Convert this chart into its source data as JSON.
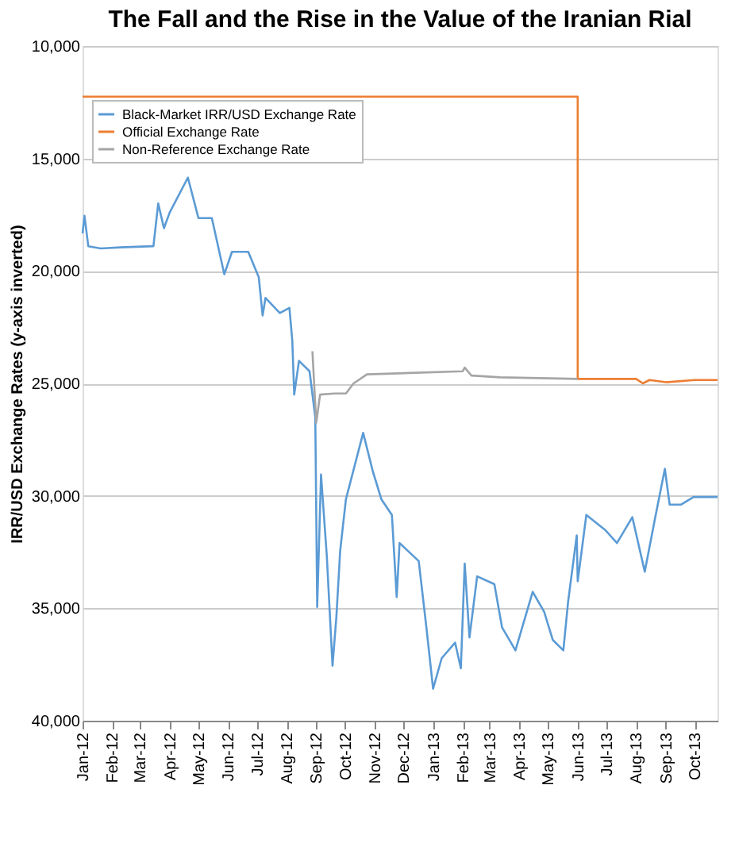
{
  "chart_data": {
    "type": "line",
    "title": "The Fall and the Rise in the Value of the Iranian Rial",
    "ylabel": "IRR/USD Exchange Rates (y-axis inverted)",
    "xlim": [
      "2012-01-01",
      "2013-10-25"
    ],
    "xticks": [
      {
        "value": "2012-01-01",
        "label": "Jan-12"
      },
      {
        "value": "2012-02-01",
        "label": "Feb-12"
      },
      {
        "value": "2012-03-01",
        "label": "Mar-12"
      },
      {
        "value": "2012-04-01",
        "label": "Apr-12"
      },
      {
        "value": "2012-05-01",
        "label": "May-12"
      },
      {
        "value": "2012-06-01",
        "label": "Jun-12"
      },
      {
        "value": "2012-07-01",
        "label": "Jul-12"
      },
      {
        "value": "2012-08-01",
        "label": "Aug-12"
      },
      {
        "value": "2012-09-01",
        "label": "Sep-12"
      },
      {
        "value": "2012-10-01",
        "label": "Oct-12"
      },
      {
        "value": "2012-11-01",
        "label": "Nov-12"
      },
      {
        "value": "2012-12-01",
        "label": "Dec-12"
      },
      {
        "value": "2013-01-01",
        "label": "Jan-13"
      },
      {
        "value": "2013-02-01",
        "label": "Feb-13"
      },
      {
        "value": "2013-03-01",
        "label": "Mar-13"
      },
      {
        "value": "2013-04-01",
        "label": "Apr-13"
      },
      {
        "value": "2013-05-01",
        "label": "May-13"
      },
      {
        "value": "2013-06-01",
        "label": "Jun-13"
      },
      {
        "value": "2013-07-01",
        "label": "Jul-13"
      },
      {
        "value": "2013-08-01",
        "label": "Aug-13"
      },
      {
        "value": "2013-09-01",
        "label": "Sep-13"
      },
      {
        "value": "2013-10-01",
        "label": "Oct-13"
      }
    ],
    "ylim": [
      40000,
      10000
    ],
    "yticks": [
      {
        "value": 10000,
        "label": "10,000"
      },
      {
        "value": 15000,
        "label": "15,000"
      },
      {
        "value": 20000,
        "label": "20,000"
      },
      {
        "value": 25000,
        "label": "25,000"
      },
      {
        "value": 30000,
        "label": "30,000"
      },
      {
        "value": 35000,
        "label": "35,000"
      },
      {
        "value": 40000,
        "label": "40,000"
      }
    ],
    "grid": "y",
    "legend": "top left",
    "line_style": "solid",
    "marker": "none",
    "series": [
      {
        "name": "Black-Market IRR/USD Exchange Rate",
        "color": "#5b9bd5",
        "x": [
          "2012-01-01",
          "2012-01-03",
          "2012-01-07",
          "2012-01-20",
          "2012-02-10",
          "2012-03-15",
          "2012-03-20",
          "2012-03-26",
          "2012-04-01",
          "2012-04-20",
          "2012-05-01",
          "2012-05-15",
          "2012-05-28",
          "2012-06-05",
          "2012-06-22",
          "2012-07-03",
          "2012-07-07",
          "2012-07-10",
          "2012-07-25",
          "2012-08-04",
          "2012-08-07",
          "2012-08-09",
          "2012-08-14",
          "2012-08-25",
          "2012-08-31",
          "2012-09-02",
          "2012-09-06",
          "2012-09-12",
          "2012-09-18",
          "2012-09-22",
          "2012-09-26",
          "2012-10-02",
          "2012-10-20",
          "2012-10-30",
          "2012-11-08",
          "2012-11-19",
          "2012-11-24",
          "2012-11-27",
          "2012-12-17",
          "2012-12-25",
          "2013-01-01",
          "2013-01-10",
          "2013-01-24",
          "2013-01-30",
          "2013-02-03",
          "2013-02-08",
          "2013-02-16",
          "2013-03-06",
          "2013-03-14",
          "2013-03-28",
          "2013-04-15",
          "2013-04-27",
          "2013-05-06",
          "2013-05-17",
          "2013-05-22",
          "2013-05-31",
          "2013-06-01",
          "2013-06-10",
          "2013-06-30",
          "2013-07-12",
          "2013-07-28",
          "2013-08-10",
          "2013-08-21",
          "2013-08-31",
          "2013-09-05",
          "2013-09-17",
          "2013-09-30",
          "2013-10-25"
        ],
        "values": [
          18330,
          17550,
          18900,
          19000,
          18950,
          18900,
          17000,
          18100,
          17400,
          15850,
          17650,
          17650,
          20150,
          19150,
          19150,
          20280,
          21980,
          21200,
          21870,
          21640,
          23100,
          25500,
          24000,
          24460,
          26500,
          34940,
          29050,
          32650,
          37550,
          35400,
          32440,
          30150,
          27200,
          28900,
          30150,
          30850,
          34500,
          32100,
          32900,
          35850,
          38580,
          37220,
          36530,
          37670,
          33010,
          36300,
          33580,
          33930,
          35850,
          36870,
          34270,
          35160,
          36410,
          36870,
          34700,
          31760,
          33800,
          30850,
          31530,
          32100,
          30950,
          33370,
          30950,
          28800,
          30390,
          30390,
          30050,
          30050
        ]
      },
      {
        "name": "Official Exchange Rate",
        "color": "#ed7d31",
        "x": [
          "2012-01-01",
          "2013-06-01",
          "2013-06-01",
          "2013-08-01",
          "2013-08-08",
          "2013-08-15",
          "2013-09-01",
          "2013-10-01",
          "2013-10-25"
        ],
        "values": [
          12250,
          12250,
          24800,
          24800,
          25000,
          24850,
          24950,
          24850,
          24850
        ]
      },
      {
        "name": "Non-Reference Exchange Rate",
        "color": "#a5a5a5",
        "x": [
          "2012-08-28",
          "2012-09-01",
          "2012-09-05",
          "2012-09-20",
          "2012-10-02",
          "2012-10-10",
          "2012-10-24",
          "2013-02-01",
          "2013-02-03",
          "2013-02-10",
          "2013-03-12",
          "2013-06-01"
        ],
        "values": [
          23570,
          26750,
          25500,
          25450,
          25450,
          25000,
          24600,
          24460,
          24300,
          24650,
          24730,
          24800
        ]
      }
    ]
  }
}
